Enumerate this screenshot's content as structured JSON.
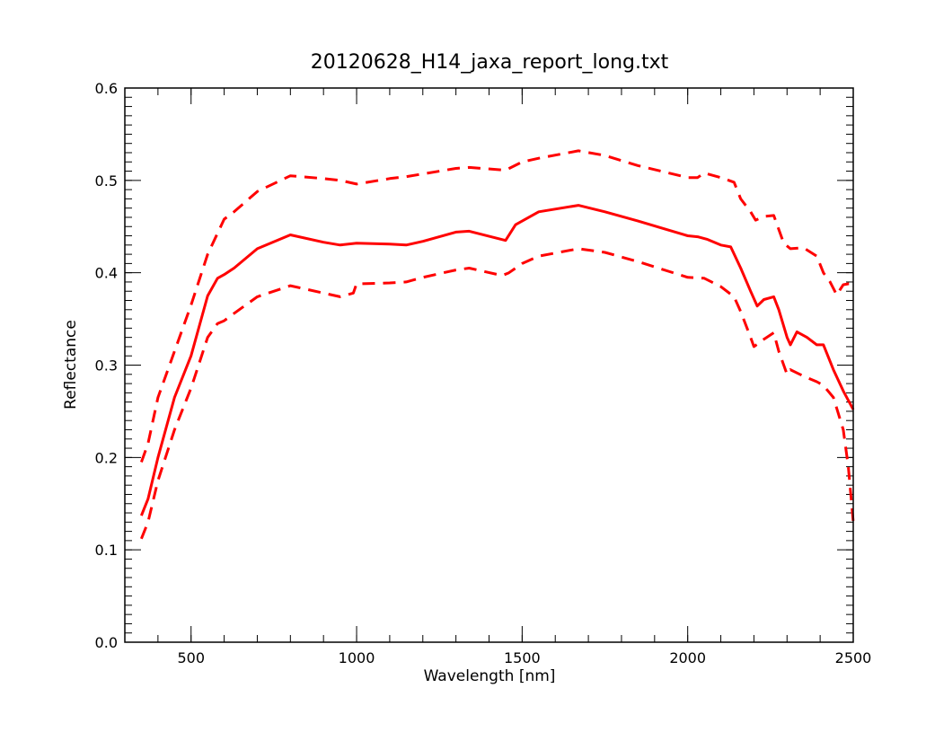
{
  "chart_data": {
    "type": "line",
    "title": "20120628_H14_jaxa_report_long.txt",
    "xlabel": "Wavelength [nm]",
    "ylabel": "Reflectance",
    "xlim": [
      300,
      2500
    ],
    "ylim": [
      0.0,
      0.6
    ],
    "x_ticks": [
      500,
      1000,
      1500,
      2000,
      2500
    ],
    "x_tick_labels": [
      "500",
      "1000",
      "1500",
      "2000",
      "2500"
    ],
    "x_minor_step": 100,
    "y_ticks": [
      0.0,
      0.1,
      0.2,
      0.3,
      0.4,
      0.5,
      0.6
    ],
    "y_tick_labels": [
      "0.0",
      "0.1",
      "0.2",
      "0.3",
      "0.4",
      "0.5",
      "0.6"
    ],
    "y_minor_step": 0.01,
    "grid": false,
    "legend": "none",
    "color": "#ff0000",
    "series": [
      {
        "style": "solid",
        "x": [
          350,
          370,
          400,
          450,
          500,
          550,
          580,
          600,
          630,
          700,
          800,
          900,
          950,
          1000,
          1100,
          1150,
          1200,
          1300,
          1340,
          1450,
          1480,
          1550,
          1670,
          1750,
          1850,
          2000,
          2030,
          2060,
          2100,
          2130,
          2160,
          2190,
          2210,
          2230,
          2260,
          2275,
          2300,
          2310,
          2330,
          2360,
          2390,
          2410,
          2440,
          2470,
          2500
        ],
        "y": [
          0.137,
          0.155,
          0.2,
          0.265,
          0.31,
          0.375,
          0.394,
          0.398,
          0.405,
          0.426,
          0.441,
          0.433,
          0.43,
          0.432,
          0.431,
          0.43,
          0.434,
          0.444,
          0.445,
          0.435,
          0.452,
          0.466,
          0.473,
          0.466,
          0.456,
          0.44,
          0.439,
          0.436,
          0.43,
          0.428,
          0.405,
          0.38,
          0.364,
          0.371,
          0.374,
          0.36,
          0.33,
          0.322,
          0.336,
          0.33,
          0.322,
          0.322,
          0.295,
          0.272,
          0.252
        ]
      },
      {
        "style": "dashed",
        "x": [
          350,
          370,
          400,
          450,
          500,
          550,
          600,
          630,
          700,
          800,
          900,
          950,
          1000,
          1100,
          1150,
          1200,
          1300,
          1340,
          1450,
          1500,
          1550,
          1670,
          1750,
          1850,
          2000,
          2030,
          2050,
          2100,
          2140,
          2160,
          2190,
          2205,
          2230,
          2260,
          2270,
          2290,
          2310,
          2350,
          2390,
          2410,
          2430,
          2450,
          2470,
          2485,
          2500
        ],
        "y": [
          0.195,
          0.215,
          0.265,
          0.315,
          0.365,
          0.42,
          0.458,
          0.466,
          0.488,
          0.505,
          0.502,
          0.5,
          0.496,
          0.502,
          0.504,
          0.507,
          0.513,
          0.514,
          0.511,
          0.52,
          0.524,
          0.532,
          0.527,
          0.516,
          0.503,
          0.503,
          0.508,
          0.503,
          0.498,
          0.48,
          0.466,
          0.457,
          0.461,
          0.462,
          0.452,
          0.432,
          0.426,
          0.427,
          0.418,
          0.4,
          0.39,
          0.376,
          0.387,
          0.388,
          0.388
        ]
      },
      {
        "style": "dashed",
        "x": [
          350,
          370,
          400,
          450,
          500,
          550,
          580,
          600,
          630,
          700,
          800,
          900,
          950,
          990,
          1000,
          1100,
          1150,
          1200,
          1300,
          1340,
          1440,
          1460,
          1500,
          1550,
          1670,
          1750,
          1850,
          2000,
          2050,
          2100,
          2140,
          2160,
          2190,
          2200,
          2230,
          2260,
          2275,
          2300,
          2310,
          2350,
          2390,
          2410,
          2440,
          2470,
          2485,
          2500
        ],
        "y": [
          0.112,
          0.13,
          0.175,
          0.23,
          0.275,
          0.33,
          0.345,
          0.348,
          0.356,
          0.374,
          0.386,
          0.378,
          0.374,
          0.378,
          0.388,
          0.389,
          0.39,
          0.395,
          0.403,
          0.405,
          0.397,
          0.4,
          0.41,
          0.418,
          0.426,
          0.422,
          0.412,
          0.395,
          0.394,
          0.385,
          0.374,
          0.358,
          0.33,
          0.32,
          0.328,
          0.335,
          0.315,
          0.29,
          0.295,
          0.288,
          0.282,
          0.278,
          0.265,
          0.23,
          0.19,
          0.13
        ]
      }
    ]
  }
}
